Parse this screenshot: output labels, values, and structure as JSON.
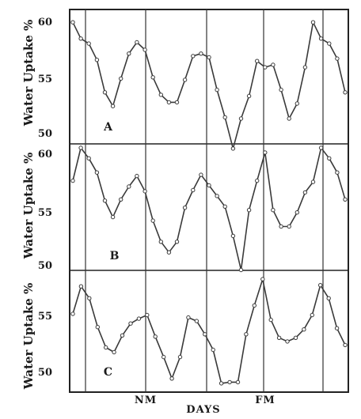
{
  "chart_data": [
    {
      "type": "line",
      "panel_label": "A",
      "ylabel": "Water Uptake %",
      "ylim": [
        50,
        60.5
      ],
      "yticks": [
        "60",
        "55",
        "50"
      ],
      "values": [
        59.6,
        58.3,
        57.9,
        56.6,
        54.0,
        52.9,
        55.1,
        57.1,
        58.0,
        57.4,
        55.2,
        53.8,
        53.2,
        53.2,
        55.0,
        56.9,
        57.1,
        56.8,
        54.2,
        52.0,
        49.5,
        51.9,
        53.7,
        56.5,
        56.0,
        56.2,
        54.2,
        51.9,
        53.1,
        56.0,
        59.6,
        58.3,
        57.9,
        56.7,
        54.0
      ]
    },
    {
      "type": "line",
      "panel_label": "B",
      "ylabel": "Water Uptake %",
      "ylim": [
        50,
        60.5
      ],
      "yticks": [
        "60",
        "55",
        "50"
      ],
      "values": [
        57.5,
        60.3,
        59.4,
        58.2,
        55.8,
        54.4,
        55.9,
        57.0,
        57.9,
        56.6,
        54.1,
        52.3,
        51.4,
        52.3,
        55.2,
        56.7,
        58.0,
        57.1,
        56.2,
        55.3,
        52.8,
        49.9,
        55.0,
        57.5,
        59.9,
        55.0,
        53.6,
        53.6,
        54.8,
        56.5,
        57.4,
        60.3,
        59.4,
        58.2,
        55.9
      ]
    },
    {
      "type": "line",
      "panel_label": "C",
      "ylabel": "Water Uptake %",
      "ylim": [
        49,
        58.9
      ],
      "yticks": [
        "55",
        "50"
      ],
      "values": [
        55.4,
        57.7,
        56.7,
        54.3,
        52.6,
        52.2,
        53.6,
        54.6,
        55.0,
        55.3,
        53.5,
        51.8,
        50.0,
        51.8,
        55.1,
        54.8,
        53.7,
        52.4,
        49.6,
        49.7,
        49.7,
        53.7,
        56.1,
        58.3,
        54.9,
        53.4,
        53.1,
        53.4,
        54.1,
        55.3,
        57.8,
        56.7,
        54.2,
        52.8
      ]
    }
  ],
  "x_axis": {
    "title": "DAYS",
    "markers": [
      "NM",
      "FM"
    ]
  }
}
